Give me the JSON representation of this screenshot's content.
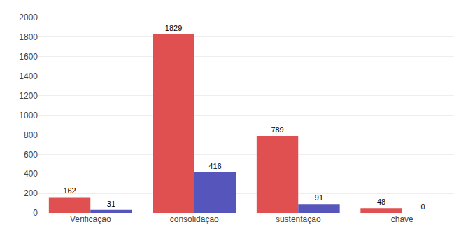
{
  "chart_data": {
    "type": "bar",
    "categories": [
      "Verificação",
      "consolidação",
      "sustentação",
      "chave"
    ],
    "series": [
      {
        "color": "#E05050",
        "values": [
          162,
          1829,
          789,
          48
        ]
      },
      {
        "color": "#5555BB",
        "values": [
          31,
          416,
          91,
          0
        ]
      }
    ],
    "ylim": [
      0,
      2000
    ],
    "yticks": [
      0,
      200,
      400,
      600,
      800,
      1000,
      1200,
      1400,
      1600,
      1800,
      2000
    ],
    "grid": true,
    "data_labels": true
  }
}
